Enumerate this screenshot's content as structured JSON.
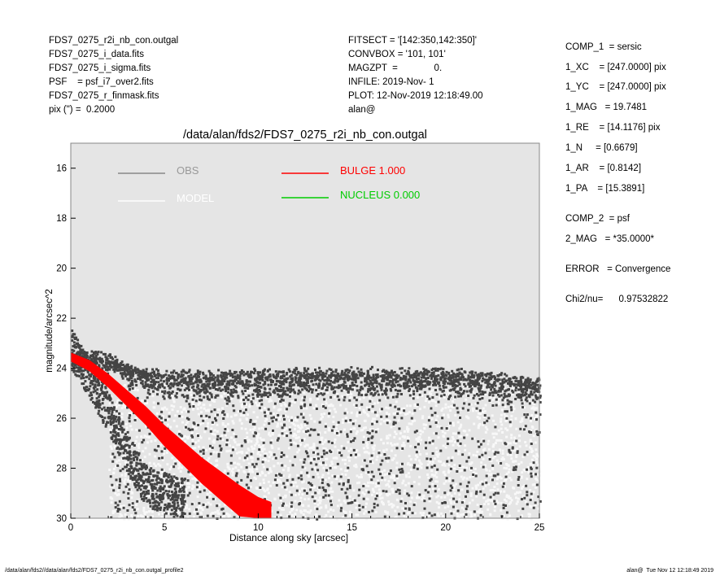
{
  "header_left": [
    "FDS7_0275_r2i_nb_con.outgal",
    "FDS7_0275_i_data.fits",
    "FDS7_0275_i_sigma.fits",
    "PSF    = psf_i7_over2.fits",
    "FDS7_0275_r_finmask.fits",
    "pix (\") =  0.2000"
  ],
  "header_mid": [
    "FITSECT = '[142:350,142:350]'",
    "CONVBOX = '101, 101'",
    "MAGZPT  =              0.",
    "INFILE: 2019-Nov- 1",
    "PLOT: 12-Nov-2019 12:18:49.00",
    "alan@"
  ],
  "params": [
    "COMP_1  = sersic",
    "1_XC    = [247.0000] pix",
    "1_YC    = [247.0000] pix",
    "1_MAG   = 19.7481",
    "1_RE    = [14.1176] pix",
    "1_N     = [0.6679]",
    "1_AR    = [0.8142]",
    "1_PA    = [15.3891]",
    "COMP_2  = psf",
    "2_MAG   = *35.0000*",
    "ERROR   = Convergence",
    "Chi2/nu=      0.97532822"
  ],
  "footer": {
    "left": "/data/alan/fds2//data/alan/fds2/FDS7_0275_r2i_nb_con.outgal_profile2",
    "right": "alan@  Tue Nov 12 12:18:49 2019"
  },
  "colors": {
    "plot_bg": "#e5e5e5",
    "obs": "#444444",
    "model": "#f8f8f8",
    "bulge": "#ff0000",
    "nucleus": "#00cc00"
  },
  "chart_data": {
    "type": "scatter",
    "title": "/data/alan/fds2/FDS7_0275_r2i_nb_con.outgal",
    "xlabel": "Distance along sky [arcsec]",
    "ylabel": "magnitude/arcsec^2",
    "xlim": [
      0,
      25
    ],
    "ylim": [
      30,
      15
    ],
    "y_inverted": true,
    "x_ticks": [
      0,
      5,
      10,
      15,
      20,
      25
    ],
    "y_ticks": [
      16,
      18,
      20,
      22,
      24,
      26,
      28,
      30
    ],
    "legend": [
      {
        "label": "OBS",
        "color": "#888888"
      },
      {
        "label": "MODEL",
        "color": "#ffffff"
      },
      {
        "label": "BULGE  1.000",
        "color": "#ff0000"
      },
      {
        "label": "NUCLEUS  0.000",
        "color": "#00cc00"
      }
    ],
    "series": [
      {
        "name": "OBS",
        "kind": "dense_scatter",
        "color": "#444444",
        "upper_envelope": {
          "x": [
            0,
            1,
            2,
            3,
            5,
            8,
            12,
            16,
            20,
            25
          ],
          "y": [
            23.3,
            23.2,
            23.3,
            23.8,
            24.0,
            24.0,
            23.9,
            23.9,
            23.9,
            24.3
          ]
        },
        "lower_envelope": {
          "x": [
            0,
            1,
            2,
            3,
            4,
            6,
            10,
            15,
            20,
            25
          ],
          "y": [
            24.0,
            25.2,
            26.6,
            28.2,
            29.5,
            30.0,
            30.0,
            30.0,
            30.0,
            30.0
          ]
        },
        "dense_band": {
          "x": [
            3,
            5,
            10,
            15,
            20,
            25
          ],
          "y": [
            24.2,
            24.6,
            24.7,
            24.6,
            24.6,
            24.8
          ]
        }
      },
      {
        "name": "MODEL",
        "kind": "dense_scatter",
        "color": "#f8f8f8",
        "region": {
          "x": [
            2,
            25
          ],
          "y_top": 24.6,
          "y_bottom": 30.0
        }
      },
      {
        "name": "BULGE",
        "kind": "band",
        "color": "#ff0000",
        "x": [
          0,
          1,
          2,
          3,
          4,
          5,
          6,
          7,
          8,
          9,
          10,
          10.7
        ],
        "y": [
          23.55,
          23.9,
          24.5,
          25.2,
          25.9,
          26.7,
          27.4,
          28.1,
          28.7,
          29.3,
          29.8,
          30.0
        ]
      }
    ]
  }
}
